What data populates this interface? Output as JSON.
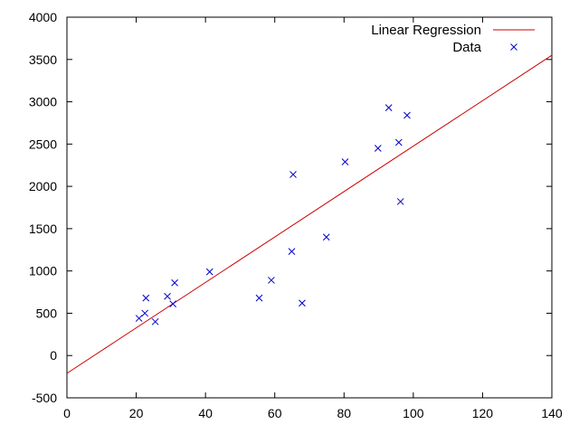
{
  "chart_data": {
    "type": "scatter",
    "title": "",
    "xlabel": "",
    "ylabel": "",
    "xlim": [
      0,
      140
    ],
    "ylim": [
      -500,
      4000
    ],
    "x_ticks": [
      "0",
      "20",
      "40",
      "60",
      "80",
      "100",
      "120",
      "140"
    ],
    "y_ticks": [
      "-500",
      "0",
      "500",
      "1000",
      "1500",
      "2000",
      "2500",
      "3000",
      "3500",
      "4000"
    ],
    "grid": false,
    "legend_position": "top-right",
    "series": [
      {
        "name": "Linear Regression",
        "kind": "line",
        "color": "#cc0000",
        "x": [
          0,
          140
        ],
        "y": [
          -210,
          3550
        ]
      },
      {
        "name": "Data",
        "kind": "scatter",
        "marker": "x",
        "color": "#0000cc",
        "x": [
          20.8,
          22.5,
          22.8,
          25.5,
          29,
          30.6,
          31.1,
          41.2,
          55.5,
          59,
          64.9,
          65.3,
          67.9,
          74.9,
          80.3,
          89.8,
          92.9,
          95.8,
          96.3,
          98.2
        ],
        "y": [
          440,
          500,
          680,
          400,
          700,
          610,
          860,
          990,
          680,
          890,
          1230,
          2140,
          620,
          1400,
          2290,
          2450,
          2930,
          2520,
          1820,
          2840
        ]
      }
    ]
  }
}
